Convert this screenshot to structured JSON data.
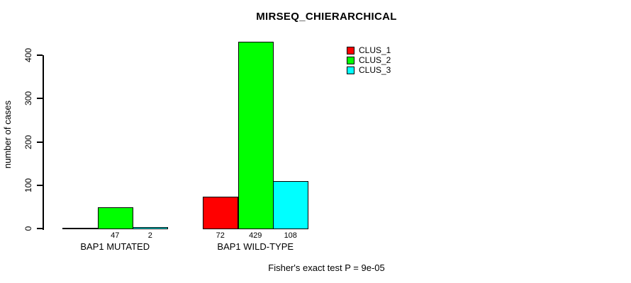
{
  "chart_data": {
    "type": "bar",
    "title": "MIRSEQ_CHIERARCHICAL",
    "ylabel": "number of cases",
    "xlabel": "",
    "ylim": [
      0,
      400
    ],
    "yticks": [
      0,
      100,
      200,
      300,
      400
    ],
    "grid": false,
    "legend_position": "top-right",
    "categories": [
      "BAP1 MUTATED",
      "BAP1 WILD-TYPE"
    ],
    "series": [
      {
        "name": "CLUS_1",
        "color": "#ff0000",
        "values": [
          0,
          72
        ],
        "labels": [
          "",
          "72"
        ]
      },
      {
        "name": "CLUS_2",
        "color": "#00ff00",
        "values": [
          47,
          429
        ],
        "labels": [
          "47",
          "429"
        ]
      },
      {
        "name": "CLUS_3",
        "color": "#00ffff",
        "values": [
          2,
          108
        ],
        "labels": [
          "2",
          "108"
        ]
      }
    ],
    "annotation": "Fisher's exact test P = 9e-05",
    "colors": {
      "background": "#ffffff",
      "axis": "#000000",
      "text": "#000000"
    }
  }
}
